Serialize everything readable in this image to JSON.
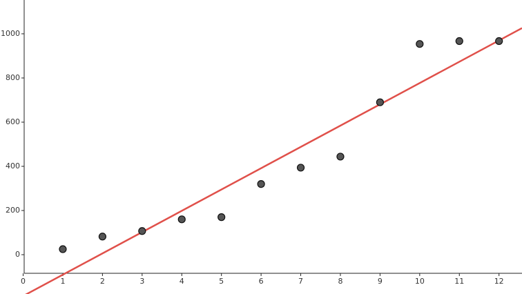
{
  "chart_data": {
    "type": "scatter",
    "x": [
      1,
      2,
      3,
      4,
      5,
      6,
      7,
      8,
      9,
      10,
      11,
      12
    ],
    "values": [
      25,
      82,
      107,
      160,
      170,
      320,
      394,
      444,
      690,
      954,
      967,
      967
    ],
    "color": "#555555",
    "trend_line": {
      "slope": 96.4,
      "intercept": -187,
      "color": "#e0504a"
    },
    "xlim": [
      -0.584,
      12.58
    ],
    "ylim": [
      -178,
      1153
    ],
    "xticks": [
      0,
      1,
      2,
      3,
      4,
      5,
      6,
      7,
      8,
      9,
      10,
      11,
      12
    ],
    "yticks": [
      0,
      200,
      400,
      600,
      800,
      1000
    ]
  }
}
